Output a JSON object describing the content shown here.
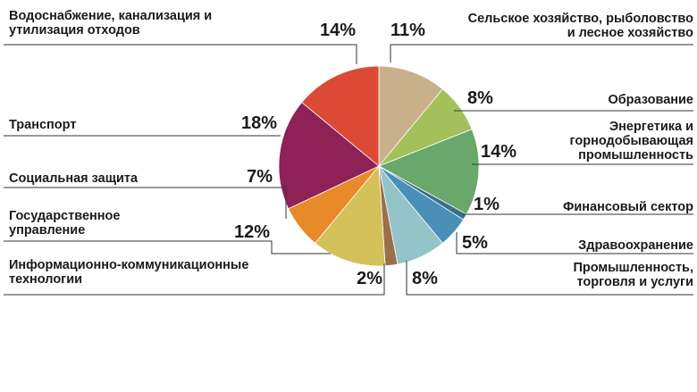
{
  "chart_data": {
    "type": "pie",
    "title": "",
    "slices": [
      {
        "label": [
          "Сельское хозяйство, рыболовство",
          "и лесное хозяйство"
        ],
        "value": 11,
        "pct_text": "11%",
        "color": "#c8b08a"
      },
      {
        "label": [
          "Образование"
        ],
        "value": 8,
        "pct_text": "8%",
        "color": "#a4c05a"
      },
      {
        "label": [
          "Энергетика и",
          "горнодобывающая",
          "промышленность"
        ],
        "value": 14,
        "pct_text": "14%",
        "color": "#68a86a"
      },
      {
        "label": [
          "Финансовый сектор"
        ],
        "value": 1,
        "pct_text": "1%",
        "color": "#3a6f8a"
      },
      {
        "label": [
          "Здравоохранение"
        ],
        "value": 5,
        "pct_text": "5%",
        "color": "#4a8fb8"
      },
      {
        "label": [
          "Промышленность,",
          "торговля и услуги"
        ],
        "value": 8,
        "pct_text": "8%",
        "color": "#93c4c8"
      },
      {
        "label": [
          "Информационно-коммуникационные",
          "технологии"
        ],
        "value": 2,
        "pct_text": "2%",
        "color": "#9b6f4c"
      },
      {
        "label": [
          "Государственное",
          "управление"
        ],
        "value": 12,
        "pct_text": "12%",
        "color": "#d4c15a"
      },
      {
        "label": [
          "Социальная защита"
        ],
        "value": 7,
        "pct_text": "7%",
        "color": "#e8892a"
      },
      {
        "label": [
          "Транспорт"
        ],
        "value": 18,
        "pct_text": "18%",
        "color": "#8e2156"
      },
      {
        "label": [
          "Водоснабжение, канализация и",
          "утилизация отходов"
        ],
        "value": 14,
        "pct_text": "14%",
        "color": "#dc4a36"
      }
    ]
  }
}
